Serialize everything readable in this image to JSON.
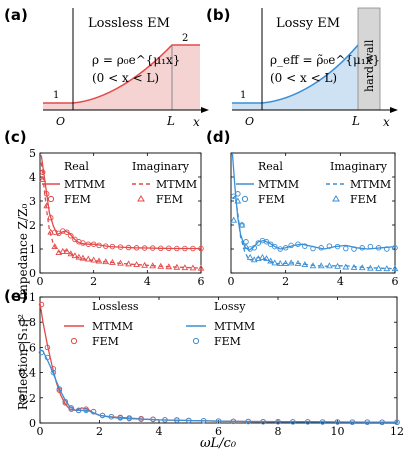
{
  "panels": {
    "a": {
      "tag": "(a)",
      "title": "Lossless EM",
      "formula": "ρ = ρ₀e^{μ₁x}",
      "range": "(0 < x < L)",
      "region1": "1",
      "region2": "2",
      "origin": "O",
      "xmark": "L",
      "xaxis": "x",
      "color_line": "#e34a4a",
      "color_fill": "#f6d3d3"
    },
    "b": {
      "tag": "(b)",
      "title": "Lossy EM",
      "formula": "ρ_eff = ρ̃₀e^{μ₁x}",
      "range": "(0 < x < L)",
      "region1": "1",
      "origin": "O",
      "xmark": "L",
      "xaxis": "x",
      "wall": "hard wall",
      "color_line": "#3a8fd6",
      "color_fill": "#cfe2f3",
      "color_wall": "#d6d6d6"
    },
    "c": {
      "tag": "(c)",
      "legend_real": "Real",
      "legend_imag": "Imaginary",
      "mtmm": "MTMM",
      "fem": "FEM",
      "ylabel": "Impedance Z/Z₀"
    },
    "d": {
      "tag": "(d)",
      "legend_real": "Real",
      "legend_imag": "Imaginary",
      "mtmm": "MTMM",
      "fem": "FEM"
    },
    "e": {
      "tag": "(e)",
      "legend_lossless": "Lossless",
      "legend_lossy": "Lossy",
      "mtmm": "MTMM",
      "fem": "FEM",
      "ylabel": "Reflection |S₁₁|²",
      "xlabel": "ωL/c₀"
    }
  },
  "colors": {
    "red": "#e34a4a",
    "blue": "#3a8fd6"
  },
  "chart_data": [
    {
      "id": "c",
      "type": "line",
      "xlim": [
        0,
        6
      ],
      "ylim": [
        0,
        5
      ],
      "xticks": [
        0,
        2,
        4,
        6
      ],
      "yticks": [
        0,
        1,
        2,
        3,
        4,
        5
      ],
      "series": [
        {
          "name": "Real MTMM",
          "style": "solid",
          "color": "#e34a4a",
          "x": [
            0.05,
            0.15,
            0.25,
            0.35,
            0.5,
            0.65,
            0.8,
            0.95,
            1.1,
            1.25,
            1.4,
            1.6,
            1.8,
            2.0,
            2.3,
            2.6,
            3.0,
            3.5,
            4.0,
            4.5,
            5.0,
            5.5,
            6.0
          ],
          "y": [
            4.9,
            4.1,
            3.3,
            2.5,
            1.95,
            1.6,
            1.7,
            1.75,
            1.65,
            1.45,
            1.3,
            1.22,
            1.2,
            1.2,
            1.15,
            1.1,
            1.08,
            1.05,
            1.04,
            1.03,
            1.02,
            1.02,
            1.02
          ]
        },
        {
          "name": "Real FEM",
          "style": "circle",
          "color": "#e34a4a",
          "x": [
            0.1,
            0.25,
            0.4,
            0.55,
            0.7,
            0.85,
            1.0,
            1.15,
            1.3,
            1.45,
            1.6,
            1.8,
            2.0,
            2.2,
            2.45,
            2.7,
            3.0,
            3.3,
            3.6,
            3.9,
            4.2,
            4.5,
            4.8,
            5.1,
            5.4,
            5.7,
            6.0
          ],
          "y": [
            4.2,
            3.3,
            2.3,
            1.7,
            1.65,
            1.75,
            1.7,
            1.55,
            1.4,
            1.3,
            1.25,
            1.2,
            1.2,
            1.15,
            1.12,
            1.1,
            1.08,
            1.06,
            1.05,
            1.04,
            1.04,
            1.03,
            1.03,
            1.02,
            1.02,
            1.02,
            1.02
          ]
        },
        {
          "name": "Imaginary MTMM",
          "style": "dash",
          "color": "#e34a4a",
          "x": [
            0.05,
            0.15,
            0.25,
            0.35,
            0.5,
            0.65,
            0.8,
            0.95,
            1.1,
            1.25,
            1.4,
            1.6,
            1.8,
            2.0,
            2.3,
            2.6,
            3.0,
            3.5,
            4.0,
            4.5,
            5.0,
            5.5,
            6.0
          ],
          "y": [
            4.6,
            3.6,
            2.6,
            1.8,
            1.2,
            0.9,
            0.85,
            0.95,
            0.85,
            0.7,
            0.65,
            0.6,
            0.55,
            0.52,
            0.48,
            0.45,
            0.4,
            0.36,
            0.32,
            0.28,
            0.25,
            0.23,
            0.2
          ]
        },
        {
          "name": "Imaginary FEM",
          "style": "triangle",
          "color": "#e34a4a",
          "x": [
            0.1,
            0.25,
            0.4,
            0.55,
            0.7,
            0.85,
            1.0,
            1.15,
            1.3,
            1.45,
            1.6,
            1.8,
            2.0,
            2.2,
            2.45,
            2.7,
            3.0,
            3.3,
            3.6,
            3.9,
            4.2,
            4.5,
            4.8,
            5.1,
            5.4,
            5.7,
            6.0
          ],
          "y": [
            3.9,
            2.8,
            1.7,
            1.1,
            0.85,
            0.9,
            0.9,
            0.8,
            0.72,
            0.66,
            0.62,
            0.58,
            0.54,
            0.5,
            0.47,
            0.44,
            0.41,
            0.38,
            0.35,
            0.32,
            0.3,
            0.28,
            0.26,
            0.24,
            0.22,
            0.21,
            0.2
          ]
        }
      ]
    },
    {
      "id": "d",
      "type": "line",
      "xlim": [
        0,
        6
      ],
      "ylim": [
        0,
        5
      ],
      "xticks": [
        0,
        2,
        4,
        6
      ],
      "yticks": [
        0,
        1,
        2,
        3,
        4,
        5
      ],
      "series": [
        {
          "name": "Real MTMM",
          "style": "solid",
          "color": "#3a8fd6",
          "x": [
            0.05,
            0.15,
            0.25,
            0.35,
            0.5,
            0.65,
            0.8,
            1.0,
            1.2,
            1.4,
            1.6,
            1.8,
            2.0,
            2.3,
            2.6,
            3.0,
            3.4,
            3.8,
            4.2,
            4.6,
            5.0,
            5.5,
            6.0
          ],
          "y": [
            5.0,
            3.5,
            2.3,
            1.6,
            1.1,
            0.95,
            1.05,
            1.3,
            1.35,
            1.25,
            1.1,
            1.0,
            1.05,
            1.15,
            1.2,
            1.1,
            1.0,
            1.1,
            1.15,
            1.05,
            1.0,
            1.05,
            1.1
          ]
        },
        {
          "name": "Real FEM",
          "style": "circle",
          "color": "#3a8fd6",
          "x": [
            0.1,
            0.25,
            0.4,
            0.55,
            0.7,
            0.85,
            1.0,
            1.15,
            1.3,
            1.45,
            1.6,
            1.8,
            2.0,
            2.2,
            2.45,
            2.7,
            3.0,
            3.3,
            3.6,
            3.9,
            4.2,
            4.5,
            4.8,
            5.1,
            5.4,
            5.7,
            6.0
          ],
          "y": [
            3.2,
            3.3,
            2.0,
            1.3,
            1.0,
            1.05,
            1.25,
            1.35,
            1.3,
            1.2,
            1.1,
            1.0,
            1.05,
            1.15,
            1.2,
            1.12,
            1.02,
            1.05,
            1.12,
            1.1,
            1.02,
            1.0,
            1.05,
            1.1,
            1.05,
            1.0,
            1.05
          ]
        },
        {
          "name": "Imaginary MTMM",
          "style": "dash",
          "color": "#3a8fd6",
          "x": [
            0.05,
            0.15,
            0.25,
            0.35,
            0.5,
            0.65,
            0.8,
            1.0,
            1.2,
            1.4,
            1.6,
            1.8,
            2.0,
            2.3,
            2.6,
            3.0,
            3.4,
            3.8,
            4.2,
            4.6,
            5.0,
            5.5,
            6.0
          ],
          "y": [
            3.1,
            3.2,
            2.5,
            1.5,
            0.9,
            0.55,
            0.55,
            0.65,
            0.6,
            0.5,
            0.4,
            0.38,
            0.4,
            0.42,
            0.38,
            0.32,
            0.28,
            0.3,
            0.3,
            0.26,
            0.22,
            0.2,
            0.18
          ]
        },
        {
          "name": "Imaginary FEM",
          "style": "triangle",
          "color": "#3a8fd6",
          "x": [
            0.1,
            0.25,
            0.4,
            0.55,
            0.7,
            0.85,
            1.0,
            1.15,
            1.3,
            1.45,
            1.6,
            1.8,
            2.0,
            2.2,
            2.45,
            2.7,
            3.0,
            3.3,
            3.6,
            3.9,
            4.2,
            4.5,
            4.8,
            5.1,
            5.4,
            5.7,
            6.0
          ],
          "y": [
            2.2,
            3.0,
            2.0,
            1.1,
            0.65,
            0.55,
            0.6,
            0.65,
            0.6,
            0.5,
            0.42,
            0.4,
            0.4,
            0.42,
            0.4,
            0.35,
            0.3,
            0.3,
            0.3,
            0.28,
            0.25,
            0.23,
            0.22,
            0.2,
            0.19,
            0.18,
            0.18
          ]
        }
      ]
    },
    {
      "id": "e",
      "type": "line",
      "xlim": [
        0,
        12
      ],
      "ylim": [
        0,
        1
      ],
      "xticks": [
        0,
        2,
        4,
        6,
        8,
        10,
        12
      ],
      "yticks": [
        0,
        0.2,
        0.4,
        0.6,
        0.8,
        1
      ],
      "series": [
        {
          "name": "Lossless MTMM",
          "style": "solid",
          "color": "#e34a4a",
          "x": [
            0,
            0.1,
            0.25,
            0.4,
            0.55,
            0.7,
            0.85,
            1.0,
            1.2,
            1.4,
            1.6,
            1.8,
            2.0,
            2.3,
            2.6,
            3.0,
            3.5,
            4.0,
            5.0,
            6.0,
            7.0,
            8.0,
            9.0,
            10.0,
            11.0,
            12.0
          ],
          "y": [
            0.95,
            0.8,
            0.62,
            0.46,
            0.32,
            0.22,
            0.15,
            0.11,
            0.1,
            0.12,
            0.11,
            0.08,
            0.06,
            0.05,
            0.045,
            0.04,
            0.03,
            0.025,
            0.02,
            0.015,
            0.012,
            0.01,
            0.01,
            0.008,
            0.007,
            0.006
          ]
        },
        {
          "name": "Lossless FEM",
          "style": "circle",
          "color": "#e34a4a",
          "x": [
            0.05,
            0.25,
            0.45,
            0.65,
            0.85,
            1.05,
            1.3,
            1.55,
            1.8,
            2.1,
            2.4,
            2.7,
            3.0,
            3.4,
            3.8,
            4.2,
            4.6,
            5.0,
            5.5,
            6.0,
            6.5,
            7.0,
            7.5,
            8.0,
            8.5,
            9.0,
            9.5,
            10.0,
            10.5,
            11.0,
            11.5,
            12.0
          ],
          "y": [
            0.94,
            0.6,
            0.43,
            0.26,
            0.16,
            0.11,
            0.1,
            0.11,
            0.09,
            0.06,
            0.05,
            0.045,
            0.04,
            0.035,
            0.03,
            0.025,
            0.025,
            0.02,
            0.018,
            0.015,
            0.013,
            0.012,
            0.01,
            0.01,
            0.009,
            0.009,
            0.008,
            0.008,
            0.007,
            0.007,
            0.006,
            0.006
          ]
        },
        {
          "name": "Lossy MTMM",
          "style": "solid",
          "color": "#3a8fd6",
          "x": [
            0,
            0.1,
            0.25,
            0.4,
            0.55,
            0.7,
            0.85,
            1.0,
            1.2,
            1.4,
            1.6,
            1.8,
            2.0,
            2.3,
            2.6,
            3.0,
            3.5,
            4.0,
            5.0,
            6.0,
            7.0,
            8.0,
            9.0,
            10.0,
            11.0,
            12.0
          ],
          "y": [
            0.58,
            0.57,
            0.5,
            0.42,
            0.33,
            0.25,
            0.18,
            0.13,
            0.1,
            0.1,
            0.1,
            0.08,
            0.06,
            0.05,
            0.04,
            0.035,
            0.03,
            0.025,
            0.02,
            0.015,
            0.012,
            0.01,
            0.009,
            0.008,
            0.007,
            0.006
          ]
        },
        {
          "name": "Lossy FEM",
          "style": "circle",
          "color": "#3a8fd6",
          "x": [
            0.05,
            0.25,
            0.45,
            0.65,
            0.85,
            1.05,
            1.3,
            1.55,
            1.8,
            2.1,
            2.4,
            2.7,
            3.0,
            3.4,
            3.8,
            4.2,
            4.6,
            5.0,
            5.5,
            6.0,
            6.5,
            7.0,
            7.5,
            8.0,
            8.5,
            9.0,
            9.5,
            10.0,
            10.5,
            11.0,
            11.5,
            12.0
          ],
          "y": [
            0.56,
            0.52,
            0.4,
            0.27,
            0.17,
            0.12,
            0.1,
            0.1,
            0.09,
            0.06,
            0.05,
            0.04,
            0.035,
            0.03,
            0.028,
            0.025,
            0.022,
            0.02,
            0.018,
            0.015,
            0.013,
            0.012,
            0.01,
            0.01,
            0.009,
            0.009,
            0.008,
            0.008,
            0.007,
            0.007,
            0.006,
            0.006
          ]
        }
      ]
    }
  ]
}
